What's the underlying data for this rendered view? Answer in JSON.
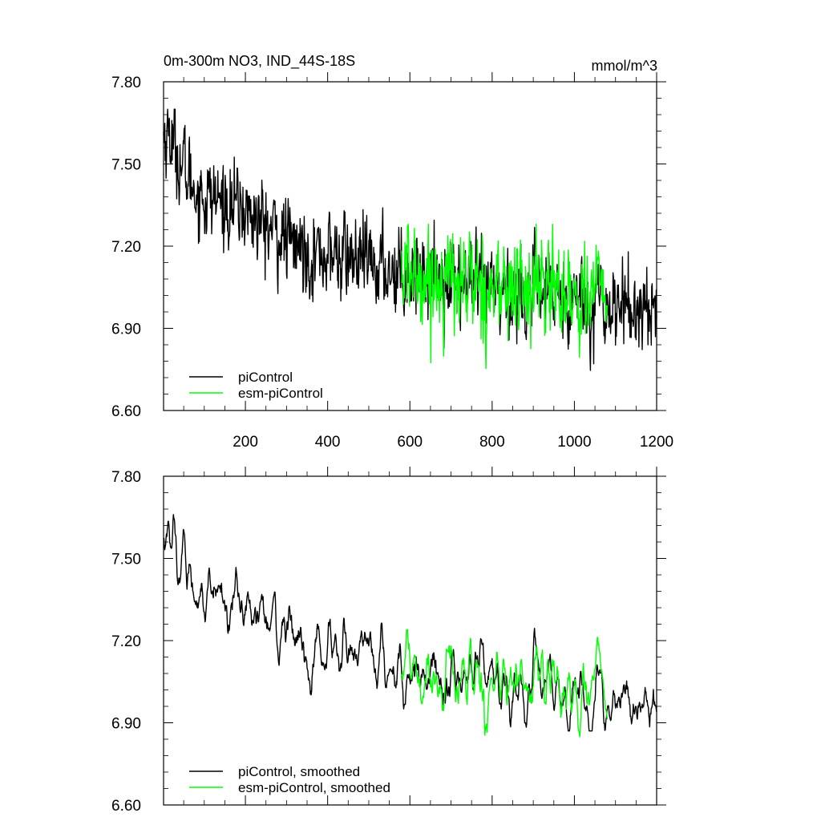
{
  "chart_data": [
    {
      "type": "line",
      "title": "0m-300m NO3, IND_44S-18S",
      "units": "mmol/m^3",
      "xlim": [
        1,
        1200
      ],
      "ylim": [
        6.6,
        7.8
      ],
      "x_ticks": [
        200,
        400,
        600,
        800,
        1000,
        1200
      ],
      "x_tick_labels": [
        "200",
        "400",
        "600",
        "800",
        "1000",
        "1200"
      ],
      "y_ticks": [
        6.6,
        6.9,
        7.2,
        7.5,
        7.8
      ],
      "y_tick_labels": [
        "6.60",
        "6.90",
        "7.20",
        "7.50",
        "7.80"
      ],
      "legend_position": "bottom-left",
      "series": [
        {
          "name": "piControl",
          "color": "#000000",
          "x_range": [
            1,
            1200
          ],
          "x": [
            1,
            15,
            30,
            50,
            75,
            100,
            150,
            200,
            250,
            300,
            350,
            400,
            450,
            500,
            550,
            600,
            650,
            700,
            750,
            800,
            850,
            900,
            950,
            1000,
            1050,
            1100,
            1150,
            1200
          ],
          "values": [
            7.6,
            7.62,
            7.55,
            7.48,
            7.42,
            7.38,
            7.36,
            7.33,
            7.27,
            7.22,
            7.18,
            7.17,
            7.16,
            7.13,
            7.12,
            7.11,
            7.1,
            7.08,
            7.05,
            7.03,
            7.02,
            7.03,
            7.02,
            7.01,
            7.0,
            6.99,
            6.97,
            7.0
          ],
          "y_range": [
            6.73,
            7.7
          ]
        },
        {
          "name": "esm-piControl",
          "color": "#00ff00",
          "x_range": [
            580,
            1080
          ],
          "x": [
            580,
            650,
            700,
            750,
            800,
            850,
            900,
            950,
            1000,
            1050,
            1080
          ],
          "values": [
            7.1,
            7.09,
            7.08,
            7.07,
            7.05,
            7.04,
            7.05,
            7.05,
            7.02,
            7.03,
            7.03
          ],
          "y_range": [
            6.68,
            7.28
          ]
        }
      ]
    },
    {
      "type": "line",
      "xlim": [
        1,
        1200
      ],
      "ylim": [
        6.6,
        7.8
      ],
      "y_ticks": [
        6.6,
        6.9,
        7.2,
        7.5,
        7.8
      ],
      "y_tick_labels": [
        "6.60",
        "6.90",
        "7.20",
        "7.50",
        "7.80"
      ],
      "legend_position": "bottom-left",
      "series": [
        {
          "name": "piControl, smoothed",
          "color": "#000000",
          "x_range": [
            1,
            1200
          ],
          "x": [
            1,
            15,
            30,
            50,
            75,
            100,
            150,
            200,
            250,
            300,
            350,
            400,
            450,
            500,
            550,
            600,
            650,
            700,
            750,
            800,
            850,
            900,
            950,
            1000,
            1050,
            1100,
            1150,
            1200
          ],
          "values": [
            7.6,
            7.62,
            7.55,
            7.48,
            7.42,
            7.38,
            7.36,
            7.33,
            7.27,
            7.22,
            7.18,
            7.17,
            7.16,
            7.13,
            7.12,
            7.11,
            7.1,
            7.08,
            7.05,
            7.03,
            7.02,
            7.03,
            7.02,
            7.01,
            7.0,
            6.99,
            6.97,
            7.0
          ],
          "y_range": [
            6.87,
            7.66
          ]
        },
        {
          "name": "esm-piControl, smoothed",
          "color": "#00ff00",
          "x_range": [
            580,
            1080
          ],
          "x": [
            580,
            650,
            700,
            750,
            800,
            850,
            900,
            950,
            1000,
            1050,
            1080
          ],
          "values": [
            7.1,
            7.09,
            7.08,
            7.07,
            7.05,
            7.04,
            7.05,
            7.05,
            7.02,
            7.03,
            7.03
          ],
          "y_range": [
            6.78,
            7.24
          ]
        }
      ]
    }
  ]
}
